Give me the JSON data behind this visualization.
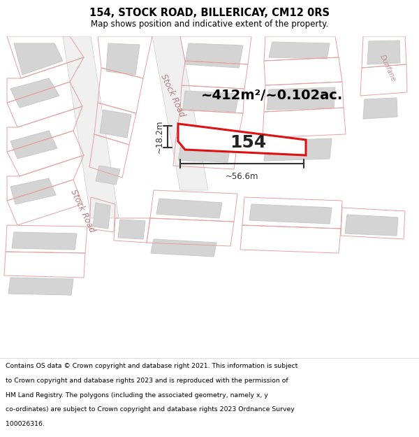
{
  "title": "154, STOCK ROAD, BILLERICAY, CM12 0RS",
  "subtitle": "Map shows position and indicative extent of the property.",
  "footer_lines": [
    "Contains OS data © Crown copyright and database right 2021. This information is subject",
    "to Crown copyright and database rights 2023 and is reproduced with the permission of",
    "HM Land Registry. The polygons (including the associated geometry, namely x, y",
    "co-ordinates) are subject to Crown copyright and database rights 2023 Ordnance Survey",
    "100026316."
  ],
  "area_label": "~412m²/~0.102ac.",
  "property_number": "154",
  "dim_width": "~56.6m",
  "dim_height": "~18.2m",
  "map_bg": "#f8f8f8",
  "building_fill": "#d4d4d4",
  "building_edge": "#cccccc",
  "plot_outline": "#e8a0a0",
  "road_fill": "#efefef",
  "road_edge": "#cccccc",
  "highlight_fill": "#ffffff",
  "highlight_edge": "#dd1111",
  "title_color": "#000000",
  "footer_color": "#000000",
  "area_color": "#000000",
  "street_label_color": "#b08080",
  "dim_color": "#333333",
  "dunfane_color": "#c09090"
}
